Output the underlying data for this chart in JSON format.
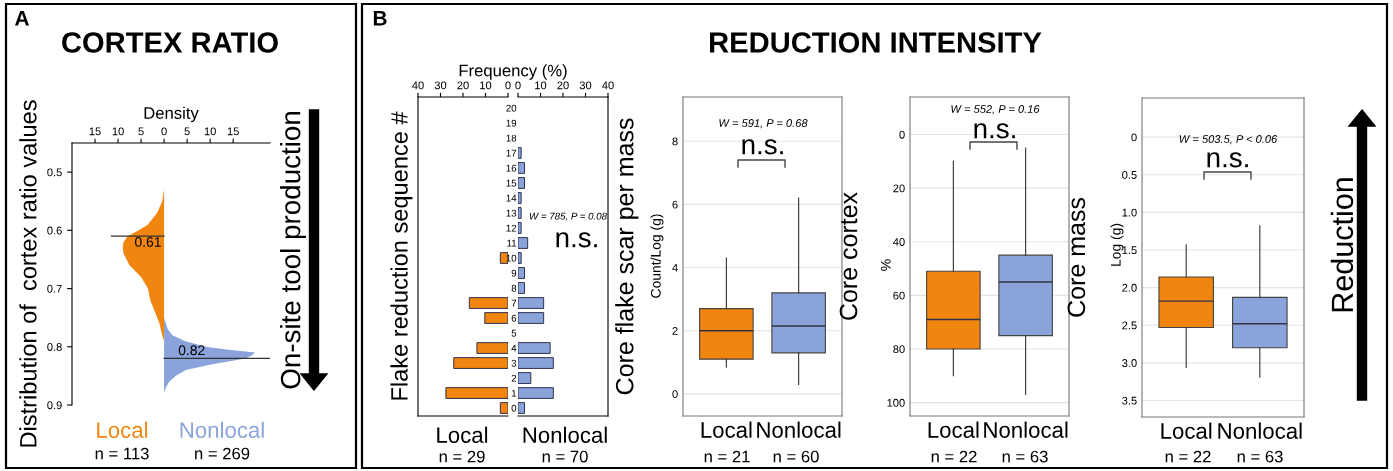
{
  "chart_data": [
    {
      "type": "area",
      "orientation": "horizontal",
      "title": "CORTEX RATIO",
      "xlabel": "Density",
      "ylabel": "Distribution of  cortex ratio values",
      "annotations": [
        "A",
        "n = 113",
        "n = 269",
        "On-site tool production"
      ],
      "series": [
        {
          "name": "Local",
          "color": "#f0850f",
          "x": [
            0.53,
            0.55,
            0.57,
            0.59,
            0.6,
            0.61,
            0.62,
            0.63,
            0.64,
            0.66,
            0.68,
            0.7,
            0.72,
            0.74,
            0.76,
            0.78,
            0.79
          ],
          "values": [
            0,
            -0.4,
            -1.5,
            -3.5,
            -5.5,
            -7.9,
            -8.8,
            -9.0,
            -8.8,
            -7.5,
            -5.0,
            -3.5,
            -3.0,
            -2.0,
            -1.0,
            -0.4,
            0
          ]
        },
        {
          "name": "Nonlocal",
          "color": "#8aa4db",
          "x": [
            0.75,
            0.77,
            0.78,
            0.79,
            0.8,
            0.805,
            0.81,
            0.815,
            0.82,
            0.83,
            0.84,
            0.85,
            0.86,
            0.87,
            0.88
          ],
          "values": [
            0,
            0.8,
            1.8,
            4.5,
            9.0,
            14.0,
            19.8,
            19.0,
            17.7,
            10.5,
            4.7,
            2.5,
            1.1,
            0.4,
            0
          ]
        }
      ],
      "xlim": [
        -20,
        23
      ],
      "xticks": [
        {
          "value": -15,
          "label": "15"
        },
        {
          "value": -10,
          "label": "10"
        },
        {
          "value": -5,
          "label": "5"
        },
        0,
        5,
        10,
        15
      ],
      "ylim": [
        0.9,
        0.45
      ],
      "yticks": [
        0.5,
        0.6,
        0.7,
        0.8,
        0.9
      ],
      "ref_lines": [
        {
          "axis": "y",
          "value": 0.61,
          "label": "0.61"
        },
        {
          "axis": "y",
          "value": 0.82,
          "label": "0.82"
        }
      ]
    },
    {
      "type": "bar",
      "orientation": "horizontal",
      "xlabel": "Frequency (%)",
      "ylabel": "Flake reduction sequence #",
      "annotations": [
        "B",
        "n = 29",
        "REDUCTION INTENSITY"
      ],
      "categories": [
        "20",
        "19",
        "18",
        "17",
        "16",
        "15",
        "14",
        "13",
        "12",
        "11",
        "10",
        "9",
        "8",
        "7",
        "6",
        "5",
        "4",
        "3",
        "2",
        "1",
        "0"
      ],
      "series": [
        {
          "name": "Local",
          "color": "#f0850f",
          "values": [
            0,
            0,
            0,
            0,
            0,
            0,
            0,
            0,
            0,
            0,
            3.4,
            0,
            0,
            17.2,
            10.3,
            0,
            13.8,
            24.1,
            0,
            27.6,
            3.4
          ]
        }
      ],
      "xlim": [
        40,
        0
      ],
      "xticks": [
        40,
        30,
        20,
        10,
        0
      ],
      "tick_labels": "x"
    },
    {
      "type": "bar",
      "orientation": "horizontal",
      "annotations": [
        "W = 785, P = 0.08",
        "n.s.",
        "n = 70"
      ],
      "categories": [
        "20",
        "19",
        "18",
        "17",
        "16",
        "15",
        "14",
        "13",
        "12",
        "11",
        "10",
        "9",
        "8",
        "7",
        "6",
        "5",
        "4",
        "3",
        "2",
        "1",
        "0"
      ],
      "series": [
        {
          "name": "Nonlocal",
          "color": "#8aa4db",
          "values": [
            0,
            0,
            0,
            1.4,
            2.9,
            2.9,
            1.4,
            1.4,
            1.4,
            4.3,
            1.4,
            2.9,
            2.9,
            11.4,
            11.4,
            0,
            14.3,
            15.7,
            5.7,
            15.7,
            2.9
          ]
        }
      ],
      "xlim": [
        0,
        40
      ],
      "xticks": [
        0,
        10,
        20,
        30,
        40
      ]
    },
    {
      "type": "box",
      "ylabel": "Core flake scar per mass",
      "annotations": [
        "Count/Log (g)",
        "W = 591, P = 0.68",
        "n.s.",
        "n = 21",
        "n = 60"
      ],
      "categories": [
        "Local",
        "Nonlocal"
      ],
      "colors": [
        "#f0850f",
        "#8aa4db"
      ],
      "boxes": [
        {
          "low": 0.85,
          "q1": 1.1,
          "median": 2.0,
          "q3": 2.7,
          "high": 4.3
        },
        {
          "low": 0.3,
          "q1": 1.3,
          "median": 2.15,
          "q3": 3.2,
          "high": 6.2
        }
      ],
      "ylim": [
        -0.7,
        9.4
      ],
      "yticks": [
        0,
        2,
        4,
        6,
        8
      ],
      "grid": "y"
    },
    {
      "type": "box",
      "ylabel": "Core cortex",
      "annotations": [
        "%",
        "W = 552, P = 0.16",
        "n.s.",
        "n = 22",
        "n = 63"
      ],
      "categories": [
        "Local",
        "Nonlocal"
      ],
      "colors": [
        "#f0850f",
        "#8aa4db"
      ],
      "boxes": [
        {
          "low": 10,
          "q1": 51,
          "median": 69,
          "q3": 80,
          "high": 90
        },
        {
          "low": 5,
          "q1": 45,
          "median": 55,
          "q3": 75,
          "high": 97
        }
      ],
      "ylim": [
        105,
        -14
      ],
      "yticks": [
        0,
        20,
        40,
        60,
        80,
        100
      ],
      "grid": "y"
    },
    {
      "type": "box",
      "ylabel": "Core mass",
      "annotations": [
        "Log (g)",
        "W = 503.5, P < 0.06",
        "n.s.",
        "Reduction",
        "n = 22",
        "n = 63"
      ],
      "categories": [
        "Local",
        "Nonlocal"
      ],
      "colors": [
        "#f0850f",
        "#8aa4db"
      ],
      "boxes": [
        {
          "low": 1.43,
          "q1": 1.86,
          "median": 2.18,
          "q3": 2.53,
          "high": 3.06
        },
        {
          "low": 1.18,
          "q1": 2.13,
          "median": 2.48,
          "q3": 2.8,
          "high": 3.19
        }
      ],
      "ylim": [
        3.72,
        -0.52
      ],
      "yticks": [
        0,
        0.5,
        {
          "value": 1,
          "label": "1.0"
        },
        1.5,
        {
          "value": 2,
          "label": "2.0"
        },
        2.5,
        {
          "value": 3,
          "label": "3.0"
        },
        3.5
      ],
      "grid": "y"
    }
  ]
}
